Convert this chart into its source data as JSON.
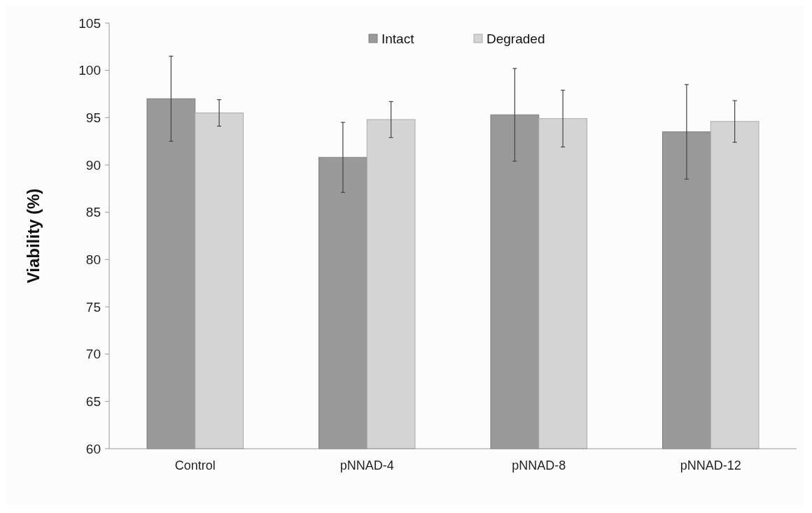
{
  "chart_data": {
    "type": "bar",
    "ylabel": "Viability (%)",
    "categories": [
      "Control",
      "pNNAD-4",
      "pNNAD-8",
      "pNNAD-12"
    ],
    "series": [
      {
        "name": "Intact",
        "color": "#999999",
        "values": [
          97.0,
          90.8,
          95.3,
          93.5
        ],
        "errors": [
          4.5,
          3.7,
          4.9,
          5.0
        ]
      },
      {
        "name": "Degraded",
        "color": "#d4d4d4",
        "values": [
          95.5,
          94.8,
          94.9,
          94.6
        ],
        "errors": [
          1.4,
          1.9,
          3.0,
          2.2
        ]
      }
    ],
    "ylim": [
      60,
      105
    ],
    "yticks": [
      60,
      65,
      70,
      75,
      80,
      85,
      90,
      95,
      100,
      105
    ],
    "grid": false,
    "legend": "top"
  }
}
